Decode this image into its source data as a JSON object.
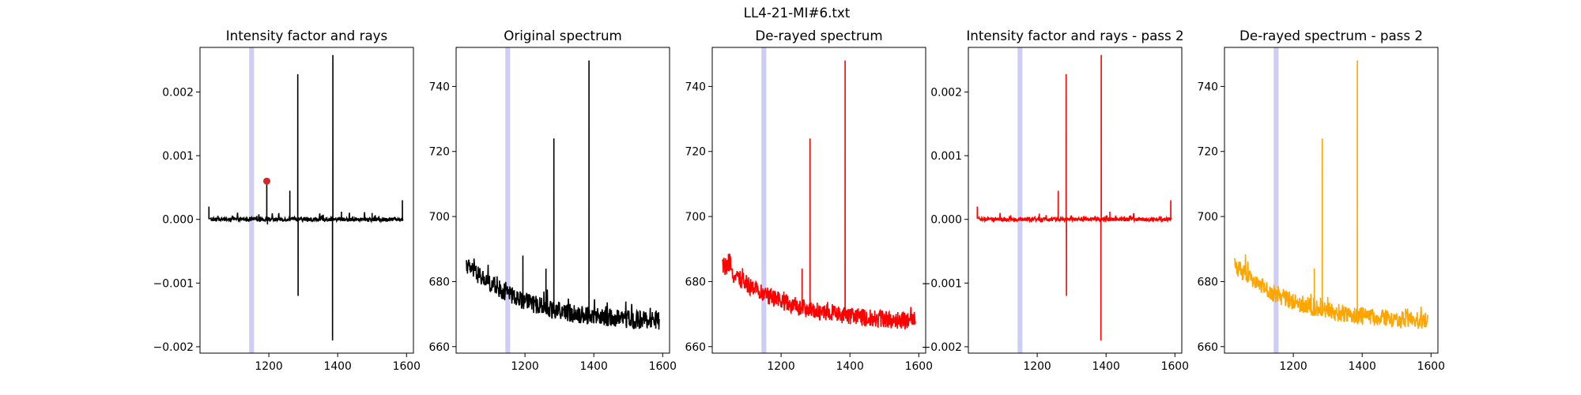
{
  "figure": {
    "suptitle": "LL4-21-MI#6.txt"
  },
  "chart_data": [
    {
      "type": "line",
      "title": "Intensity factor and rays",
      "xlim": [
        1000,
        1620
      ],
      "ylim": [
        -0.0021,
        0.0027
      ],
      "xticks": [
        "1200",
        "1400",
        "1600"
      ],
      "yticks": [
        "−0.002",
        "−0.001",
        "0.000",
        "0.001",
        "0.002"
      ],
      "ytick_values": [
        -0.002,
        -0.001,
        0.0,
        0.001,
        0.002
      ],
      "band": [
        1143,
        1157
      ],
      "band_color": "#c8c8f5",
      "line_color": "#000000",
      "marker": {
        "x": 1194,
        "y": 0.0006,
        "color": "#d62728"
      },
      "series_kind": "factor",
      "spikes": [
        {
          "x": 1026,
          "y": 0.0002
        },
        {
          "x": 1194,
          "y": 0.0006
        },
        {
          "x": 1196,
          "y": -8e-05
        },
        {
          "x": 1261,
          "y": 0.00045
        },
        {
          "x": 1284,
          "y": 0.00228
        },
        {
          "x": 1285,
          "y": -0.0012
        },
        {
          "x": 1386,
          "y": 0.00258
        },
        {
          "x": 1385,
          "y": -0.0019
        },
        {
          "x": 1411,
          "y": 0.00012
        },
        {
          "x": 1500,
          "y": 0.0001
        },
        {
          "x": 1588,
          "y": 0.0003
        }
      ]
    },
    {
      "type": "line",
      "title": "Original spectrum",
      "xlim": [
        1000,
        1620
      ],
      "ylim": [
        658,
        752
      ],
      "xticks": [
        "1200",
        "1400",
        "1600"
      ],
      "yticks": [
        "660",
        "680",
        "700",
        "720",
        "740"
      ],
      "ytick_values": [
        660,
        680,
        700,
        720,
        740
      ],
      "band": [
        1143,
        1157
      ],
      "band_color": "#c8c8f5",
      "line_color": "#000000",
      "series_kind": "spectrum",
      "baseline": {
        "start": 684,
        "end": 666
      },
      "spikes": [
        {
          "x": 1194,
          "y": 688
        },
        {
          "x": 1261,
          "y": 684
        },
        {
          "x": 1284,
          "y": 724
        },
        {
          "x": 1386,
          "y": 748
        }
      ]
    },
    {
      "type": "line",
      "title": "De-rayed spectrum",
      "xlim": [
        1000,
        1620
      ],
      "ylim": [
        658,
        752
      ],
      "xticks": [
        "1200",
        "1400",
        "1600"
      ],
      "yticks": [
        "660",
        "680",
        "700",
        "720",
        "740"
      ],
      "ytick_values": [
        660,
        680,
        700,
        720,
        740
      ],
      "band": [
        1143,
        1157
      ],
      "band_color": "#c8c8f5",
      "line_color": "#ff0000",
      "series_kind": "spectrum",
      "baseline": {
        "start": 684,
        "end": 666
      },
      "spikes": [
        {
          "x": 1261,
          "y": 684
        },
        {
          "x": 1284,
          "y": 724
        },
        {
          "x": 1386,
          "y": 748
        }
      ]
    },
    {
      "type": "line",
      "title": "Intensity factor and rays - pass 2",
      "xlim": [
        1000,
        1620
      ],
      "ylim": [
        -0.0021,
        0.0027
      ],
      "xticks": [
        "1200",
        "1400",
        "1600"
      ],
      "yticks": [
        "−0.002",
        "−0.001",
        "0.000",
        "0.001",
        "0.002"
      ],
      "ytick_values": [
        -0.002,
        -0.001,
        0.0,
        0.001,
        0.002
      ],
      "band": [
        1143,
        1157
      ],
      "band_color": "#c8c8f5",
      "line_color": "#ff0000",
      "series_kind": "factor",
      "spikes": [
        {
          "x": 1026,
          "y": 0.0002
        },
        {
          "x": 1261,
          "y": 0.00045
        },
        {
          "x": 1284,
          "y": 0.00228
        },
        {
          "x": 1285,
          "y": -0.0012
        },
        {
          "x": 1386,
          "y": 0.00258
        },
        {
          "x": 1385,
          "y": -0.0019
        },
        {
          "x": 1411,
          "y": 0.00012
        },
        {
          "x": 1588,
          "y": 0.0003
        }
      ]
    },
    {
      "type": "line",
      "title": "De-rayed spectrum - pass 2",
      "xlim": [
        1000,
        1620
      ],
      "ylim": [
        658,
        752
      ],
      "xticks": [
        "1200",
        "1400",
        "1600"
      ],
      "yticks": [
        "660",
        "680",
        "700",
        "720",
        "740"
      ],
      "ytick_values": [
        660,
        680,
        700,
        720,
        740
      ],
      "band": [
        1143,
        1157
      ],
      "band_color": "#c8c8f5",
      "line_color": "#ffa500",
      "series_kind": "spectrum",
      "baseline": {
        "start": 684,
        "end": 666
      },
      "spikes": [
        {
          "x": 1261,
          "y": 684
        },
        {
          "x": 1284,
          "y": 724
        },
        {
          "x": 1386,
          "y": 748
        }
      ]
    }
  ]
}
